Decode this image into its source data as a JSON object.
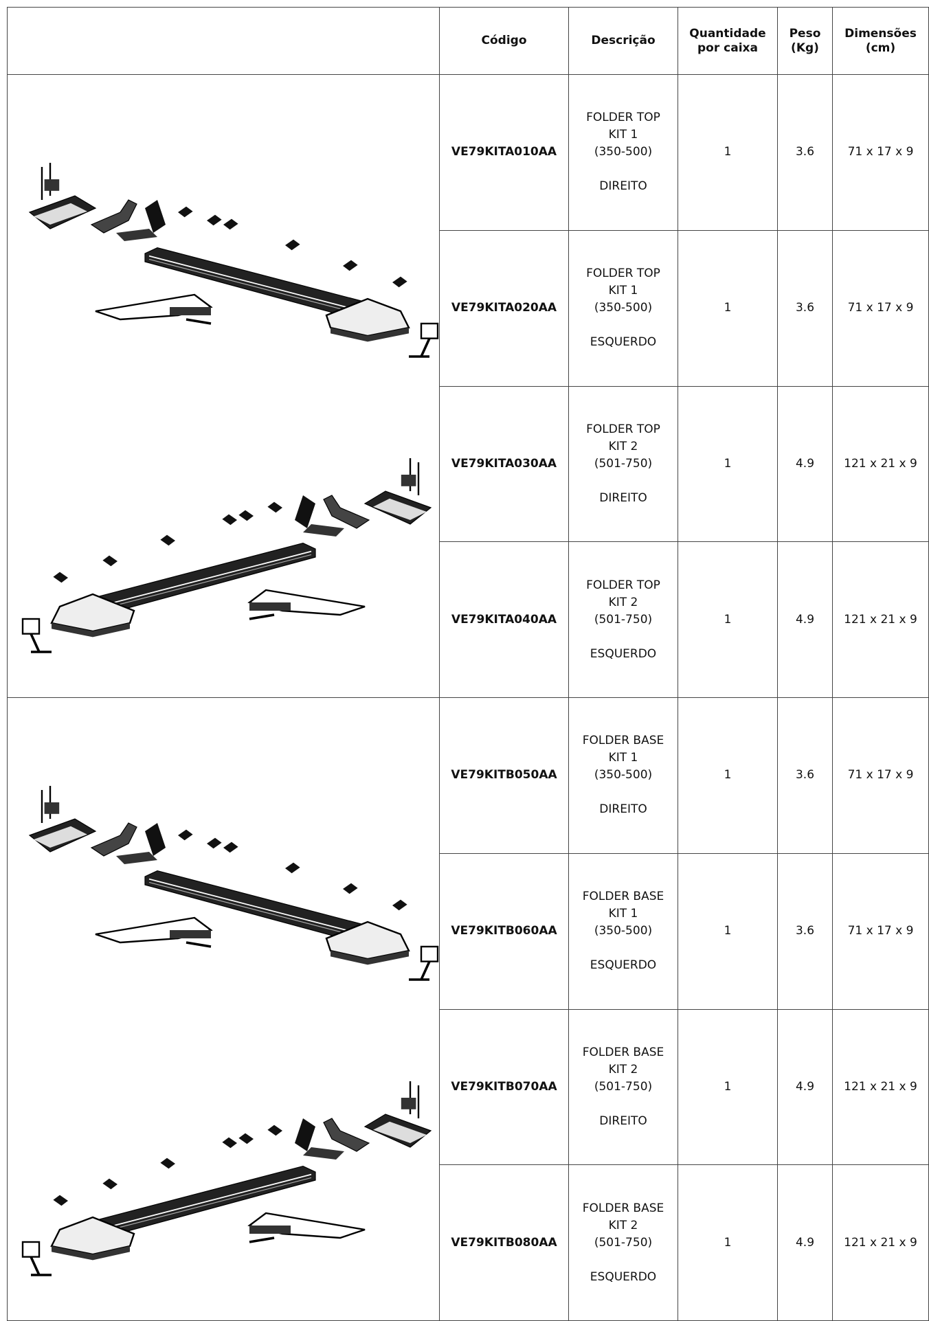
{
  "table": {
    "header": [
      "Código",
      "Descrição",
      "Quantidade por caixa",
      "Peso (Kg)",
      "Dimensões (cm)"
    ],
    "rows": [
      {
        "code": "VE79KITA010AA",
        "description": [
          "FOLDER TOP",
          "KIT 1",
          "(350-500)"
        ],
        "side": "DIREITO",
        "quantity": 1,
        "weight": 3.6,
        "dimensions": "71 x 17 x 9"
      },
      {
        "code": "VE79KITA020AA",
        "description": [
          "FOLDER TOP",
          "KIT 1",
          "(350-500)"
        ],
        "side": "ESQUERDO",
        "quantity": 1,
        "weight": 3.6,
        "dimensions": "71 x 17 x 9"
      },
      {
        "code": "VE79KITA030AA",
        "description": [
          "FOLDER TOP",
          "KIT 2",
          "(501-750)"
        ],
        "side": "DIREITO",
        "quantity": 1,
        "weight": 4.9,
        "dimensions": "121 x 21 x 9"
      },
      {
        "code": "VE79KITA040AA",
        "description": [
          "FOLDER TOP",
          "KIT 2",
          "(501-750)"
        ],
        "side": "ESQUERDO",
        "quantity": 1,
        "weight": 4.9,
        "dimensions": "121 x 21 x 9"
      },
      {
        "code": "VE79KITB050AA",
        "description": [
          "FOLDER BASE",
          "KIT 1",
          "(350-500)"
        ],
        "side": "DIREITO",
        "quantity": 1,
        "weight": 3.6,
        "dimensions": "71 x 17 x 9"
      },
      {
        "code": "VE79KITB060AA",
        "description": [
          "FOLDER BASE",
          "KIT 1",
          "(350-500)"
        ],
        "side": "ESQUERDO",
        "quantity": 1,
        "weight": 3.6,
        "dimensions": "71 x 17 x 9"
      },
      {
        "code": "VE79KITB070AA",
        "description": [
          "FOLDER BASE",
          "KIT 2",
          "(501-750)"
        ],
        "side": "DIREITO",
        "quantity": 1,
        "weight": 4.9,
        "dimensions": "121 x 21 x 9"
      },
      {
        "code": "VE79KITB080AA",
        "description": [
          "FOLDER BASE",
          "KIT 2",
          "(501-750)"
        ],
        "side": "ESQUERDO",
        "quantity": 1,
        "weight": 4.9,
        "dimensions": "121 x 21 x 9"
      }
    ]
  }
}
